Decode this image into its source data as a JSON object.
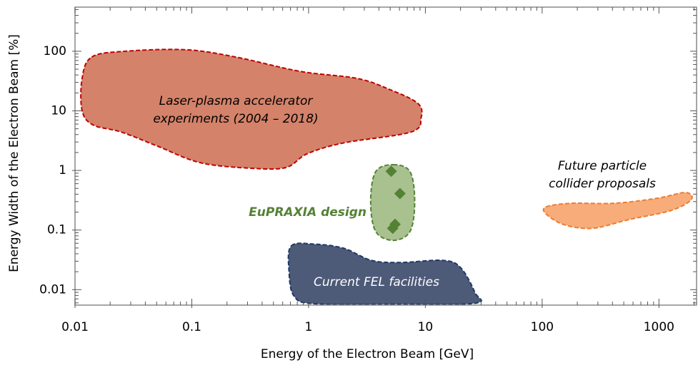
{
  "chart_data": {
    "type": "region",
    "x_label": "Energy of the Electron Beam [GeV]",
    "y_label": "Energy Width of the Electron Beam [%]",
    "xscale": "log",
    "yscale": "log",
    "xlim": [
      0.01,
      2100
    ],
    "ylim": [
      0.0055,
      550
    ],
    "xticks": [
      0.01,
      0.1,
      1,
      10,
      100,
      1000
    ],
    "yticks": [
      0.01,
      0.1,
      1,
      10,
      100
    ],
    "regions": [
      {
        "name_lines": [
          "Laser-plasma accelerator",
          "experiments (2004 – 2018)"
        ],
        "fill": "#d4826a",
        "color": "#c00000",
        "x": [
          0.0139,
          0.0269,
          0.089,
          0.238,
          0.845,
          2.6,
          4.9,
          8.6,
          9.2,
          7.5,
          2.0,
          0.97,
          0.64,
          0.32,
          0.118,
          0.051,
          0.025,
          0.0143,
          0.0115,
          0.0115
        ],
        "y": [
          80,
          100,
          106,
          80,
          46,
          35,
          23,
          13.4,
          7.7,
          4.4,
          2.9,
          1.9,
          1.12,
          1.09,
          1.35,
          2.55,
          4.4,
          5.8,
          10.1,
          35
        ]
      },
      {
        "name_lines": [
          "EuPRAXIA design"
        ],
        "fill": "#a9c08f",
        "color": "#548235",
        "x": [
          5.3,
          7.4,
          8.1,
          7.4,
          5.3,
          3.75,
          3.4,
          3.75
        ],
        "y": [
          1.25,
          0.95,
          0.3,
          0.095,
          0.067,
          0.095,
          0.3,
          0.95
        ]
      },
      {
        "name_lines": [
          "Current FEL facilities"
        ],
        "fill": "#4d5a78",
        "color": "#1f3864",
        "x": [
          0.71,
          1.12,
          2.0,
          3.45,
          6.06,
          14.1,
          20,
          26.5,
          26.5,
          5.3,
          1.12,
          0.75,
          0.68
        ],
        "y": [
          0.054,
          0.058,
          0.0495,
          0.031,
          0.0285,
          0.031,
          0.0235,
          0.009,
          0.0059,
          0.0057,
          0.0058,
          0.0078,
          0.0205
        ]
      },
      {
        "name_lines": [
          "Future particle",
          "collider proposals"
        ],
        "fill": "#f8ac7a",
        "color": "#ed7d31",
        "x": [
          108,
          177,
          413,
          961,
          1690,
          1890,
          1270,
          547,
          271,
          154,
          108
        ],
        "y": [
          0.245,
          0.281,
          0.281,
          0.341,
          0.426,
          0.323,
          0.213,
          0.149,
          0.107,
          0.123,
          0.186
        ]
      }
    ],
    "points": {
      "color": "#548235",
      "x": [
        5.1,
        6.06,
        5.25,
        5.5
      ],
      "y": [
        0.97,
        0.41,
        0.107,
        0.125
      ]
    }
  }
}
